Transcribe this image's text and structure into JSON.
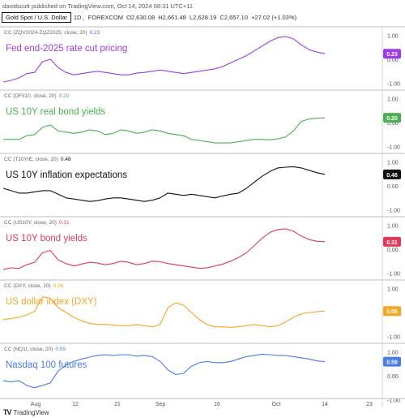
{
  "publisher_line": "davidscutt published on TradingView.com, Oct 14, 2024 08:31 UTC+11",
  "header": {
    "symbol": "Gold Spot / U.S. Dollar",
    "interval": "1D",
    "exchange": "FOREXCOM",
    "open": "O2,630.08",
    "high": "H2,661.48",
    "low": "L2,628.19",
    "close": "C2,657.10",
    "change": "+27.02 (+1.03%)"
  },
  "footer": {
    "logo_text": "TradingView",
    "logo_mark": "TV"
  },
  "chart_data": {
    "type": "line",
    "x_ticks": [
      "Aug",
      "12",
      "21",
      "Sep",
      "16",
      "Oct",
      "14",
      "23"
    ],
    "y_ticks": [
      "1.00",
      "0.00",
      "-1.00"
    ],
    "ylim": [
      -1.05,
      1.05
    ],
    "panels": [
      {
        "indicator": "CC (ZQV2024-ZQZ2025, close, 20)",
        "value": "0.23",
        "title": "Fed end-2025 rate cut pricing",
        "color": "#9c3ce6",
        "values": [
          -0.95,
          -0.88,
          -0.78,
          -0.6,
          -0.55,
          -0.1,
          0.0,
          -0.35,
          -0.55,
          -0.65,
          -0.6,
          -0.55,
          -0.5,
          -0.55,
          -0.6,
          -0.65,
          -0.65,
          -0.58,
          -0.55,
          -0.5,
          -0.45,
          -0.5,
          -0.55,
          -0.6,
          -0.55,
          -0.5,
          -0.45,
          -0.4,
          -0.3,
          -0.15,
          0.0,
          0.15,
          0.35,
          0.55,
          0.75,
          0.9,
          0.95,
          0.85,
          0.6,
          0.4,
          0.3,
          0.23
        ]
      },
      {
        "indicator": "CC (DFII10, close, 20)",
        "value": "0.20",
        "title": "US 10Y real bond yields",
        "color": "#4caf50",
        "values": [
          -0.7,
          -0.7,
          -0.7,
          -0.55,
          -0.5,
          -0.2,
          -0.1,
          -0.35,
          -0.4,
          -0.45,
          -0.4,
          -0.3,
          -0.35,
          -0.5,
          -0.45,
          -0.3,
          -0.35,
          -0.45,
          -0.4,
          -0.3,
          -0.35,
          -0.45,
          -0.5,
          -0.55,
          -0.7,
          -0.75,
          -0.8,
          -0.85,
          -0.85,
          -0.85,
          -0.8,
          -0.75,
          -0.7,
          -0.7,
          -0.72,
          -0.68,
          -0.6,
          -0.35,
          0.05,
          0.15,
          0.18,
          0.2
        ]
      },
      {
        "indicator": "CC (T10YIE, close, 20)",
        "value": "0.48",
        "title": "US 10Y inflation expectations",
        "color": "#111111",
        "values": [
          -0.1,
          -0.2,
          -0.3,
          -0.3,
          -0.25,
          -0.2,
          -0.2,
          -0.35,
          -0.5,
          -0.55,
          -0.6,
          -0.65,
          -0.62,
          -0.55,
          -0.5,
          -0.5,
          -0.55,
          -0.6,
          -0.65,
          -0.6,
          -0.5,
          -0.3,
          -0.35,
          -0.4,
          -0.35,
          -0.4,
          -0.45,
          -0.5,
          -0.42,
          -0.35,
          -0.3,
          -0.1,
          0.15,
          0.4,
          0.6,
          0.75,
          0.78,
          0.8,
          0.75,
          0.65,
          0.55,
          0.48
        ]
      },
      {
        "indicator": "CC (US10Y, close, 20)",
        "value": "0.31",
        "title": "US 10Y bond yields",
        "color": "#e03a5a",
        "values": [
          -0.85,
          -0.78,
          -0.8,
          -0.65,
          -0.55,
          -0.15,
          -0.05,
          -0.45,
          -0.6,
          -0.7,
          -0.62,
          -0.55,
          -0.58,
          -0.65,
          -0.6,
          -0.5,
          -0.55,
          -0.65,
          -0.6,
          -0.5,
          -0.52,
          -0.6,
          -0.65,
          -0.7,
          -0.75,
          -0.8,
          -0.78,
          -0.7,
          -0.62,
          -0.5,
          -0.35,
          -0.15,
          0.15,
          0.45,
          0.7,
          0.82,
          0.85,
          0.75,
          0.55,
          0.4,
          0.33,
          0.31
        ]
      },
      {
        "indicator": "CC (DXY, close, 20)",
        "value": "0.06",
        "title": "US dollar index (DXY)",
        "color": "#f5a623",
        "values": [
          -0.3,
          -0.25,
          -0.2,
          -0.1,
          0.05,
          0.65,
          0.6,
          0.2,
          0.0,
          -0.2,
          -0.35,
          -0.45,
          -0.5,
          -0.5,
          -0.52,
          -0.55,
          -0.55,
          -0.5,
          -0.55,
          -0.6,
          -0.5,
          0.2,
          0.4,
          0.3,
          0.0,
          -0.3,
          -0.5,
          -0.6,
          -0.6,
          -0.62,
          -0.6,
          -0.55,
          -0.5,
          -0.55,
          -0.6,
          -0.55,
          -0.4,
          -0.2,
          -0.05,
          0.0,
          0.03,
          0.06
        ]
      },
      {
        "indicator": "CC (NQ1!, close, 20)",
        "value": "0.59",
        "title": "Nasdaq 100 futures",
        "color": "#4a7de8",
        "values": [
          -0.2,
          -0.25,
          -0.2,
          -0.4,
          -0.5,
          -0.4,
          -0.3,
          0.2,
          0.45,
          0.6,
          0.7,
          0.78,
          0.85,
          0.88,
          0.85,
          0.88,
          0.88,
          0.82,
          0.85,
          0.8,
          0.6,
          0.25,
          0.05,
          0.1,
          0.4,
          0.55,
          0.6,
          0.55,
          0.55,
          0.6,
          0.7,
          0.8,
          0.85,
          0.9,
          0.88,
          0.85,
          0.85,
          0.8,
          0.75,
          0.7,
          0.62,
          0.59
        ]
      }
    ]
  }
}
